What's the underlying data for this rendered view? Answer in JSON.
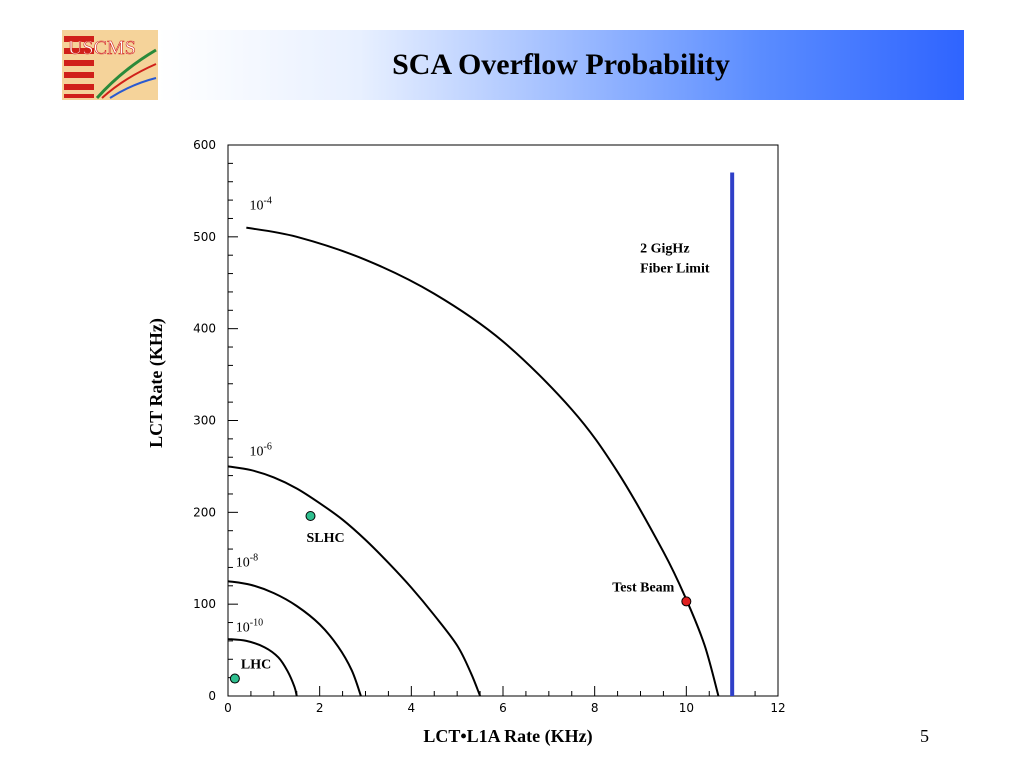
{
  "slide": {
    "title": "SCA Overflow Probability",
    "page_number": "5",
    "logo_text": "USCMS"
  },
  "colors": {
    "header_gradient_end": "#2f64ff",
    "curve": "#000000",
    "fiber_limit_line": "#2f3fc8",
    "marker_green": "#2fbf8f",
    "marker_red": "#e02020"
  },
  "chart_data": {
    "type": "line",
    "xlabel": "LCT•L1A Rate (KHz)",
    "ylabel": "LCT Rate (KHz)",
    "xlim": [
      0,
      12
    ],
    "ylim": [
      0,
      600
    ],
    "x_ticks": [
      0,
      2,
      4,
      6,
      8,
      10,
      12
    ],
    "y_ticks": [
      0,
      100,
      200,
      300,
      400,
      500,
      600
    ],
    "grid": false,
    "series": [
      {
        "name": "10^-4",
        "label_base": "10",
        "label_exp": "-4",
        "points": [
          [
            0.4,
            510
          ],
          [
            1.5,
            500
          ],
          [
            3,
            475
          ],
          [
            4.5,
            438
          ],
          [
            6,
            386
          ],
          [
            7.5,
            312
          ],
          [
            8.5,
            244
          ],
          [
            9.5,
            157
          ],
          [
            10,
            105
          ],
          [
            10.4,
            55
          ],
          [
            10.7,
            0
          ]
        ]
      },
      {
        "name": "10^-6",
        "label_base": "10",
        "label_exp": "-6",
        "points": [
          [
            0,
            250
          ],
          [
            0.5,
            246
          ],
          [
            1,
            238
          ],
          [
            1.5,
            226
          ],
          [
            2,
            210
          ],
          [
            2.5,
            192
          ],
          [
            3,
            170
          ],
          [
            3.5,
            145
          ],
          [
            4,
            118
          ],
          [
            4.5,
            88
          ],
          [
            5,
            55
          ],
          [
            5.3,
            25
          ],
          [
            5.5,
            0
          ]
        ]
      },
      {
        "name": "10^-8",
        "label_base": "10",
        "label_exp": "-8",
        "points": [
          [
            0,
            125
          ],
          [
            0.5,
            121
          ],
          [
            1,
            112
          ],
          [
            1.5,
            98
          ],
          [
            2,
            78
          ],
          [
            2.4,
            54
          ],
          [
            2.7,
            28
          ],
          [
            2.9,
            0
          ]
        ]
      },
      {
        "name": "10^-10",
        "label_base": "10",
        "label_exp": "-10",
        "points": [
          [
            0,
            62
          ],
          [
            0.4,
            60
          ],
          [
            0.8,
            53
          ],
          [
            1.1,
            42
          ],
          [
            1.3,
            27
          ],
          [
            1.45,
            10
          ],
          [
            1.5,
            0
          ]
        ]
      }
    ],
    "points": [
      {
        "label": "SLHC",
        "x": 1.8,
        "y": 196,
        "color": "#2fbf8f"
      },
      {
        "label": "LHC",
        "x": 0.15,
        "y": 19,
        "color": "#2fbf8f"
      },
      {
        "label": "Test Beam",
        "x": 10.0,
        "y": 103,
        "color": "#e02020"
      }
    ],
    "vertical_line": {
      "x": 11.0,
      "y_from": 0,
      "y_to": 570,
      "label_line1": "2 GigHz",
      "label_line2": "Fiber Limit",
      "color": "#2f3fc8"
    }
  }
}
